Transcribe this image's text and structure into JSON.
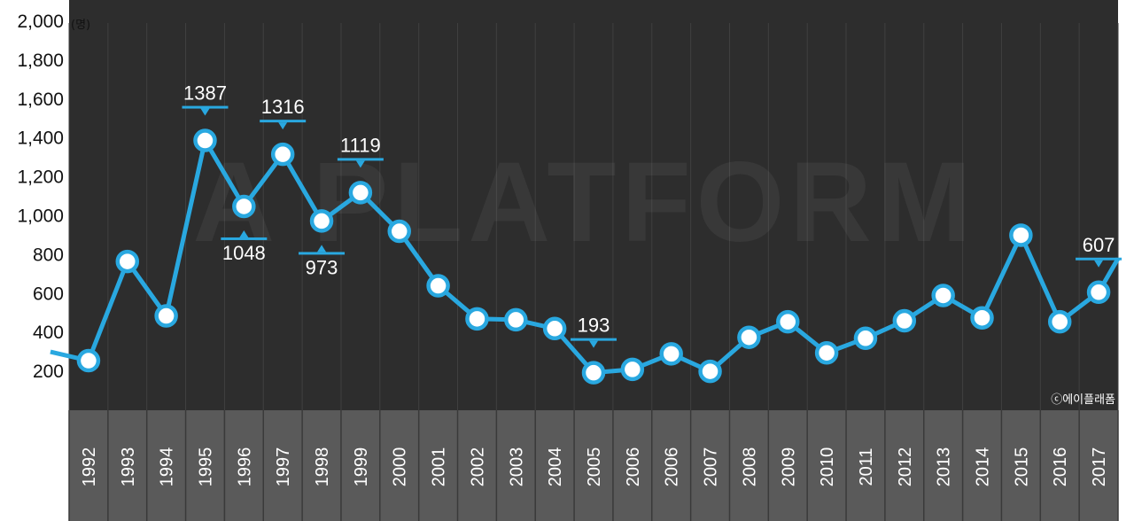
{
  "watermark": "A PLATFORM",
  "copyright": "ⓒ에이플래폼",
  "colors": {
    "plot_bg": "#2d2d2d",
    "axis_bg": "#5a5a5a",
    "line": "#29a8e0",
    "marker_fill": "#ffffff",
    "grid": "#404040"
  },
  "chart_data": {
    "type": "line",
    "title": "",
    "xlabel": "",
    "ylabel": "",
    "y_unit": "(명)",
    "ylim": [
      0,
      2000
    ],
    "yticks": [
      "200",
      "400",
      "600",
      "800",
      "1,000",
      "1,200",
      "1,400",
      "1,600",
      "1,800",
      "2,000"
    ],
    "categories": [
      "1992",
      "1993",
      "1994",
      "1995",
      "1996",
      "1997",
      "1998",
      "1999",
      "2000",
      "2001",
      "2002",
      "2003",
      "2004",
      "2005",
      "2006",
      "2006",
      "2007",
      "2008",
      "2009",
      "2010",
      "2011",
      "2012",
      "2013",
      "2014",
      "2015",
      "2016",
      "2017"
    ],
    "values": [
      255,
      765,
      485,
      1387,
      1048,
      1316,
      973,
      1119,
      920,
      640,
      470,
      465,
      420,
      193,
      210,
      290,
      200,
      375,
      455,
      295,
      370,
      460,
      590,
      475,
      900,
      455,
      607
    ],
    "labeled": [
      {
        "index": 3,
        "label": "1387",
        "position": "above"
      },
      {
        "index": 4,
        "label": "1048",
        "position": "below"
      },
      {
        "index": 5,
        "label": "1316",
        "position": "above"
      },
      {
        "index": 6,
        "label": "973",
        "position": "below"
      },
      {
        "index": 7,
        "label": "1119",
        "position": "above"
      },
      {
        "index": 13,
        "label": "193",
        "position": "above"
      },
      {
        "index": 26,
        "label": "607",
        "position": "above"
      }
    ],
    "grid": true,
    "legend": "none"
  }
}
